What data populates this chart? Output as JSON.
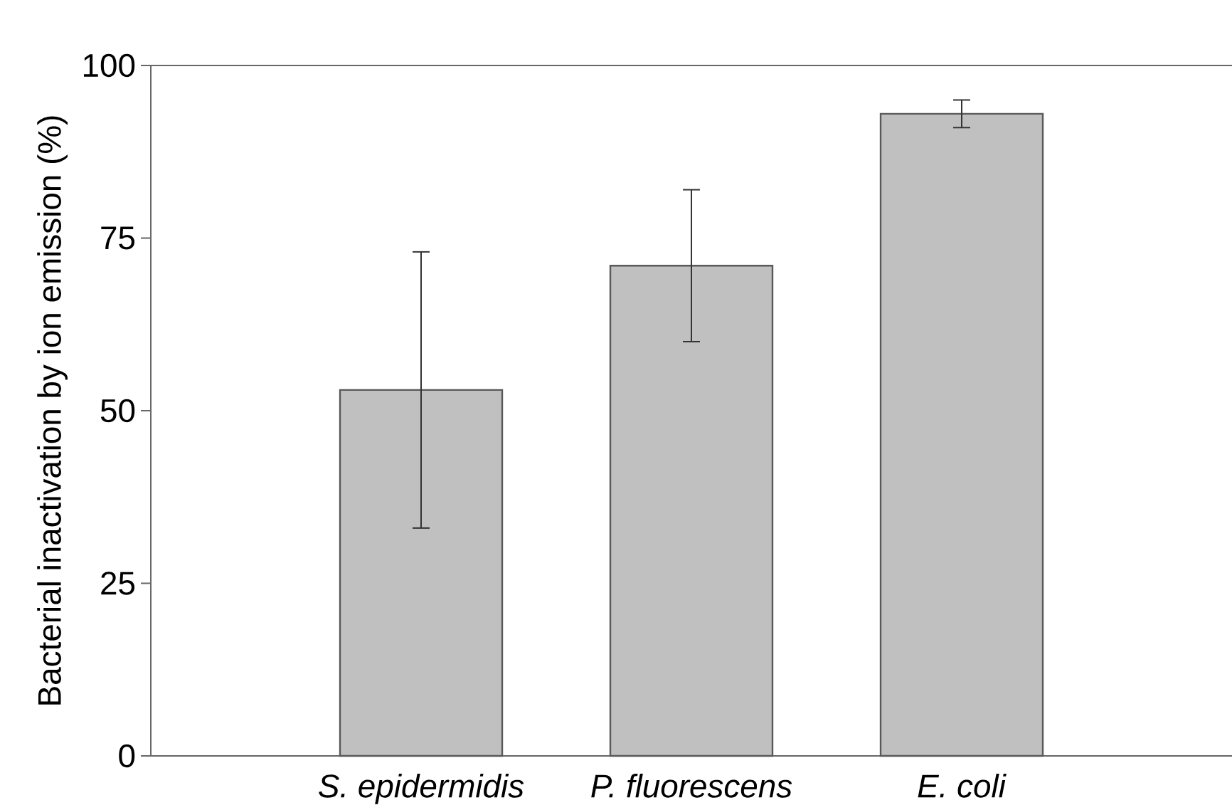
{
  "chart_data": {
    "type": "bar",
    "ylabel": "Bacterial inactivation by ion emission (%)",
    "categories": [
      "*S. epidermidis*",
      "*P. fluorescens*",
      "*E. coli*"
    ],
    "values": [
      53,
      71,
      93
    ],
    "errors": [
      20,
      11,
      2
    ],
    "color": "#c0c0c0",
    "ylim": [
      0,
      100
    ],
    "yticks": [
      0,
      25,
      50,
      75,
      100
    ],
    "grid": false
  }
}
